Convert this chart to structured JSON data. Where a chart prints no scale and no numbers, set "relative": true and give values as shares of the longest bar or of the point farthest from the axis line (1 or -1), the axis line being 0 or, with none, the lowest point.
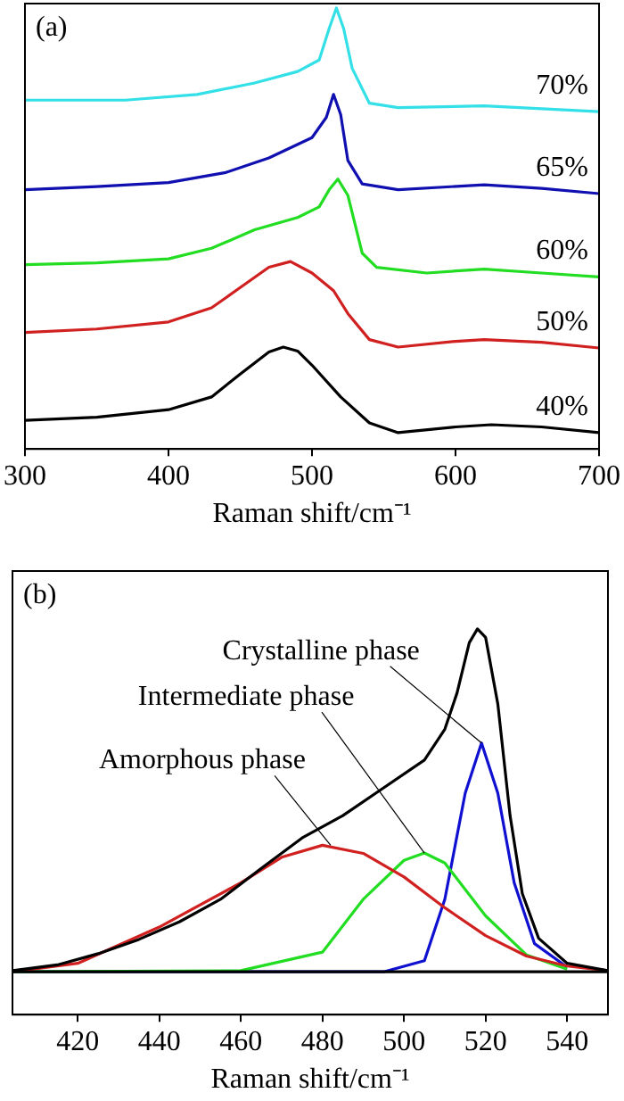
{
  "chart_data": [
    {
      "type": "line",
      "title": "(a)",
      "xlabel": "Raman shift/cm⁻¹",
      "relative": true,
      "xlim": [
        300,
        700
      ],
      "xticks": [
        300,
        400,
        500,
        600,
        700
      ],
      "grid": false,
      "legend": false,
      "marker": "none",
      "tick_labels": "x",
      "series": [
        {
          "name": "40%",
          "color": "#000000",
          "x": [
            300,
            350,
            400,
            430,
            450,
            470,
            480,
            490,
            500,
            520,
            540,
            560,
            600,
            625,
            660,
            700
          ],
          "values": [
            0.065,
            0.072,
            0.089,
            0.118,
            0.17,
            0.22,
            0.231,
            0.222,
            0.19,
            0.118,
            0.059,
            0.037,
            0.05,
            0.055,
            0.05,
            0.037
          ]
        },
        {
          "name": "50%",
          "color": "#d02020",
          "x": [
            300,
            350,
            400,
            430,
            450,
            470,
            485,
            500,
            515,
            525,
            540,
            560,
            600,
            620,
            660,
            700
          ],
          "values": [
            0.264,
            0.272,
            0.288,
            0.32,
            0.366,
            0.412,
            0.425,
            0.399,
            0.359,
            0.307,
            0.248,
            0.231,
            0.244,
            0.248,
            0.242,
            0.229
          ]
        },
        {
          "name": "60%",
          "color": "#22dd22",
          "x": [
            300,
            350,
            400,
            430,
            460,
            490,
            505,
            512,
            518,
            525,
            535,
            545,
            580,
            620,
            660,
            700
          ],
          "values": [
            0.418,
            0.422,
            0.431,
            0.455,
            0.497,
            0.525,
            0.549,
            0.588,
            0.612,
            0.575,
            0.444,
            0.412,
            0.399,
            0.408,
            0.399,
            0.39
          ]
        },
        {
          "name": "65%",
          "color": "#1010b0",
          "x": [
            300,
            350,
            400,
            440,
            470,
            500,
            510,
            515,
            520,
            525,
            535,
            560,
            620,
            660,
            700
          ],
          "values": [
            0.588,
            0.595,
            0.604,
            0.627,
            0.66,
            0.706,
            0.752,
            0.804,
            0.758,
            0.654,
            0.601,
            0.588,
            0.599,
            0.591,
            0.579
          ]
        },
        {
          "name": "70%",
          "color": "#33e0e8",
          "x": [
            300,
            370,
            420,
            460,
            490,
            505,
            512,
            517,
            522,
            528,
            540,
            560,
            620,
            700
          ],
          "values": [
            0.791,
            0.791,
            0.804,
            0.83,
            0.856,
            0.882,
            0.954,
            1,
            0.954,
            0.863,
            0.784,
            0.774,
            0.778,
            0.765
          ]
        }
      ]
    },
    {
      "type": "line",
      "title": "(b)",
      "xlabel": "Raman shift/cm⁻¹",
      "relative": true,
      "xlim": [
        404,
        550
      ],
      "xticks": [
        420,
        440,
        460,
        480,
        500,
        520,
        540
      ],
      "grid": false,
      "legend": false,
      "marker": "none",
      "tick_labels": "x",
      "series": [
        {
          "color": "#000000",
          "x": [
            404,
            550
          ],
          "values": [
            0.111,
            0.111
          ]
        },
        {
          "color": "#000000",
          "x": [
            404,
            415,
            425,
            435,
            445,
            455,
            465,
            475,
            485,
            495,
            505,
            510,
            513,
            516,
            518,
            520,
            523,
            526,
            529,
            533,
            540,
            550
          ],
          "values": [
            0.114,
            0.129,
            0.158,
            0.195,
            0.241,
            0.299,
            0.379,
            0.458,
            0.516,
            0.588,
            0.66,
            0.74,
            0.834,
            0.964,
            1,
            0.978,
            0.805,
            0.516,
            0.314,
            0.198,
            0.133,
            0.114
          ]
        },
        {
          "color": "#d02020",
          "x": [
            404,
            420,
            440,
            460,
            470,
            480,
            490,
            500,
            510,
            520,
            530,
            540,
            550
          ],
          "values": [
            0.111,
            0.133,
            0.227,
            0.342,
            0.408,
            0.439,
            0.418,
            0.357,
            0.277,
            0.205,
            0.152,
            0.126,
            0.114
          ]
        },
        {
          "color": "#22dd22",
          "x": [
            404,
            460,
            480,
            490,
            500,
            505,
            510,
            520,
            530,
            540
          ],
          "values": [
            0.111,
            0.114,
            0.162,
            0.299,
            0.4,
            0.419,
            0.393,
            0.256,
            0.155,
            0.118
          ]
        },
        {
          "color": "#1010d0",
          "x": [
            404,
            495,
            505,
            510,
            515,
            519,
            523,
            527,
            532,
            540
          ],
          "values": [
            0.111,
            0.111,
            0.14,
            0.299,
            0.574,
            0.704,
            0.574,
            0.342,
            0.184,
            0.123
          ]
        }
      ],
      "annotations": [
        {
          "text": "Crystalline phase",
          "x": 519,
          "y": 0.704
        },
        {
          "text": "Intermediate phase",
          "x": 505,
          "y": 0.419
        },
        {
          "text": "Amorphous phase",
          "x": 482,
          "y": 0.439
        }
      ]
    }
  ]
}
